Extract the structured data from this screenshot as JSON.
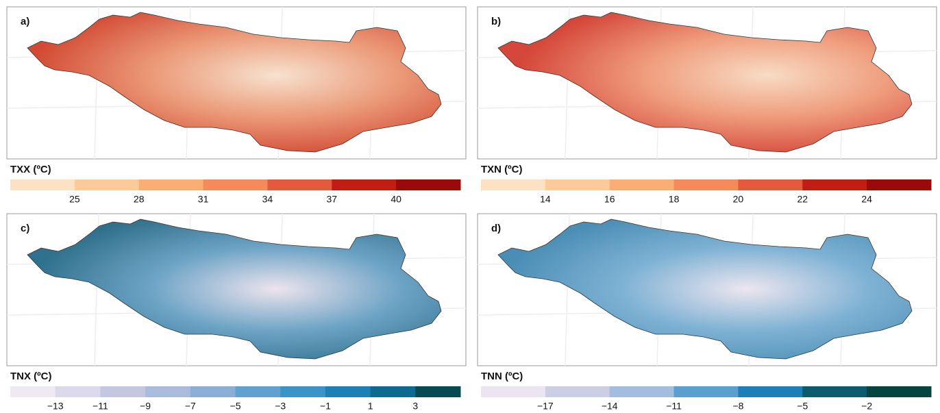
{
  "panels": [
    {
      "label": "a)",
      "legend": {
        "title": "TXX (ºC)",
        "colors": [
          "#fde1c3",
          "#fdca98",
          "#fbae74",
          "#f68a5a",
          "#e35a3c",
          "#c21d12",
          "#9a0a08"
        ],
        "ticks": [
          "25",
          "28",
          "31",
          "34",
          "37",
          "40"
        ]
      }
    },
    {
      "label": "b)",
      "legend": {
        "title": "TXN (ºC)",
        "colors": [
          "#fde1c3",
          "#fdca98",
          "#fbae74",
          "#f68a5a",
          "#e35a3c",
          "#c21d12",
          "#9a0a08"
        ],
        "ticks": [
          "14",
          "16",
          "18",
          "20",
          "22",
          "24"
        ]
      }
    },
    {
      "label": "c)",
      "legend": {
        "title": "TNX (ºC)",
        "colors": [
          "#efe9f4",
          "#dcd9ec",
          "#c5c7e1",
          "#a9bcdb",
          "#8aaed5",
          "#61a1cf",
          "#3a94c7",
          "#1c80b4",
          "#0e6a90",
          "#064a52"
        ],
        "ticks": [
          "−13",
          "−11",
          "−9",
          "−7",
          "−5",
          "−3",
          "−1",
          "1",
          "3"
        ]
      }
    },
    {
      "label": "d)",
      "legend": {
        "title": "TNN (ºC)",
        "colors": [
          "#ebe5f2",
          "#cdcde4",
          "#a2bddd",
          "#5a9fd0",
          "#1d7fb8",
          "#0b5a6e",
          "#06443f"
        ],
        "ticks": [
          "−17",
          "−14",
          "−11",
          "−8",
          "−5",
          "−2"
        ]
      }
    }
  ]
}
